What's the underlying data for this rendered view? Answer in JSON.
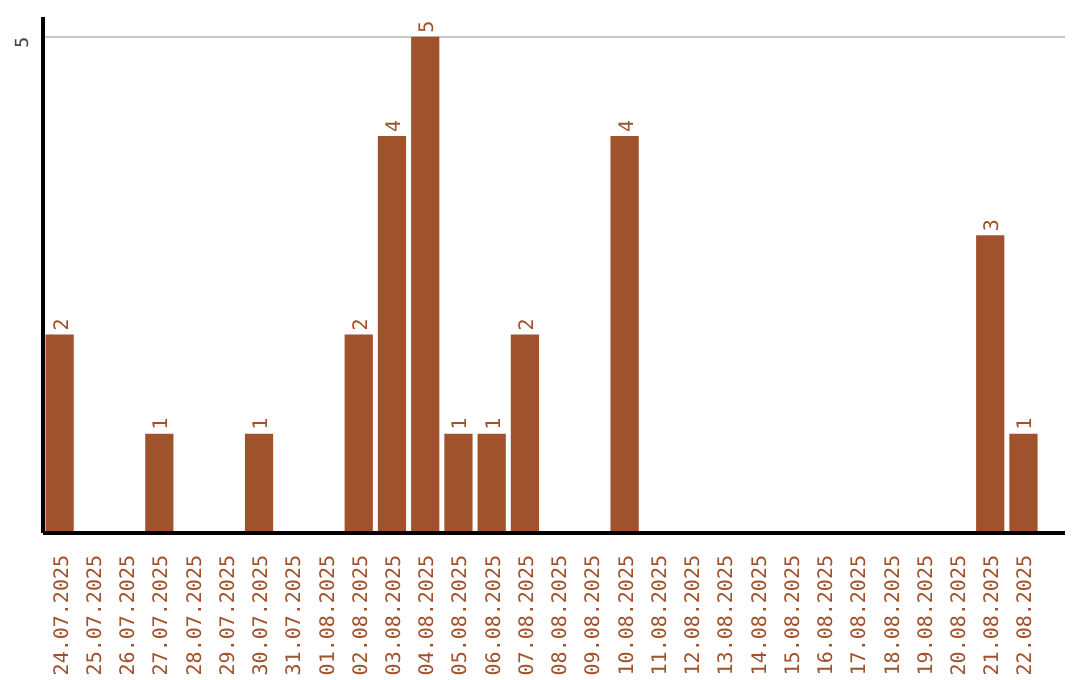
{
  "chart_data": {
    "type": "bar",
    "categories": [
      "24.07.2025",
      "25.07.2025",
      "26.07.2025",
      "27.07.2025",
      "28.07.2025",
      "29.07.2025",
      "30.07.2025",
      "31.07.2025",
      "01.08.2025",
      "02.08.2025",
      "03.08.2025",
      "04.08.2025",
      "05.08.2025",
      "06.08.2025",
      "07.08.2025",
      "08.08.2025",
      "09.08.2025",
      "10.08.2025",
      "11.08.2025",
      "12.08.2025",
      "13.08.2025",
      "14.08.2025",
      "15.08.2025",
      "16.08.2025",
      "17.08.2025",
      "18.08.2025",
      "19.08.2025",
      "20.08.2025",
      "21.08.2025",
      "22.08.2025"
    ],
    "values": [
      2,
      0,
      0,
      1,
      0,
      0,
      1,
      0,
      0,
      2,
      4,
      5,
      1,
      1,
      2,
      0,
      0,
      4,
      0,
      0,
      0,
      0,
      0,
      0,
      0,
      0,
      0,
      0,
      3,
      1
    ],
    "value_labels": [
      "2",
      null,
      null,
      "1",
      null,
      null,
      "1",
      null,
      null,
      "2",
      "4",
      "5",
      "1",
      "1",
      "2",
      null,
      null,
      "4",
      null,
      null,
      null,
      null,
      null,
      null,
      null,
      null,
      null,
      null,
      "3",
      "1"
    ],
    "color": "#a0522d",
    "ylim": [
      0,
      5.2
    ],
    "yticks": [
      5
    ],
    "grid": "y"
  }
}
